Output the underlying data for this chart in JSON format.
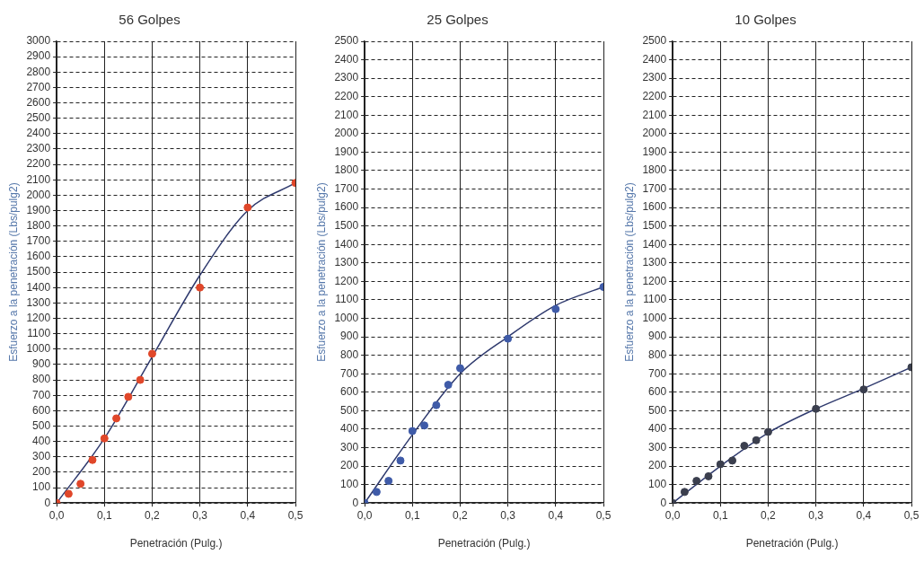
{
  "chart_data": [
    {
      "type": "scatter",
      "title": "56 Golpes",
      "xlabel": "Penetración (Pulg.)",
      "ylabel": "Esfuerzo a la penetración (Lbs/pulg2)",
      "grid": true,
      "legend": false,
      "xlim": [
        0,
        0.5
      ],
      "xticks": [
        {
          "value": 0,
          "label": "0,0"
        },
        {
          "value": 0.1,
          "label": "0,1"
        },
        {
          "value": 0.2,
          "label": "0,2"
        },
        {
          "value": 0.3,
          "label": "0,3"
        },
        {
          "value": 0.4,
          "label": "0,4"
        },
        {
          "value": 0.5,
          "label": "0,5"
        }
      ],
      "ylim": [
        0,
        3000
      ],
      "yticks": [
        0,
        100,
        200,
        300,
        400,
        500,
        600,
        700,
        800,
        900,
        1000,
        1100,
        1200,
        1300,
        1400,
        1500,
        1600,
        1700,
        1800,
        1900,
        2000,
        2100,
        2200,
        2300,
        2400,
        2500,
        2600,
        2700,
        2800,
        2900,
        3000
      ],
      "series": [
        {
          "marker": "circle",
          "color": "#e0472a",
          "x": [
            0,
            0.025,
            0.05,
            0.075,
            0.1,
            0.125,
            0.15,
            0.175,
            0.2,
            0.3,
            0.4,
            0.5
          ],
          "values": [
            0,
            60,
            125,
            280,
            420,
            550,
            690,
            800,
            970,
            1400,
            1920,
            2080
          ]
        },
        {
          "type": "line",
          "marker": "none",
          "color": "#2f3a6e",
          "x": [
            0,
            0.1,
            0.2,
            0.3,
            0.4,
            0.5
          ],
          "values": [
            0,
            420,
            950,
            1480,
            1900,
            2080
          ]
        }
      ]
    },
    {
      "type": "scatter",
      "title": "25 Golpes",
      "xlabel": "Penetración (Pulg.)",
      "ylabel": "Esfuerzo a la penetración (Lbs/pulg2)",
      "grid": true,
      "legend": false,
      "xlim": [
        0,
        0.5
      ],
      "xticks": [
        {
          "value": 0,
          "label": "0,0"
        },
        {
          "value": 0.1,
          "label": "0,1"
        },
        {
          "value": 0.2,
          "label": "0,2"
        },
        {
          "value": 0.3,
          "label": "0,3"
        },
        {
          "value": 0.4,
          "label": "0,4"
        },
        {
          "value": 0.5,
          "label": "0,5"
        }
      ],
      "ylim": [
        0,
        2500
      ],
      "yticks": [
        0,
        100,
        200,
        300,
        400,
        500,
        600,
        700,
        800,
        900,
        1000,
        1100,
        1200,
        1300,
        1400,
        1500,
        1600,
        1700,
        1800,
        1900,
        2000,
        2100,
        2200,
        2300,
        2400,
        2500
      ],
      "series": [
        {
          "marker": "circle",
          "color": "#3f5ba8",
          "x": [
            0,
            0.025,
            0.05,
            0.075,
            0.1,
            0.125,
            0.15,
            0.175,
            0.2,
            0.3,
            0.4,
            0.5
          ],
          "values": [
            0,
            60,
            120,
            230,
            390,
            420,
            530,
            640,
            730,
            890,
            1050,
            1170
          ]
        },
        {
          "type": "line",
          "marker": "none",
          "color": "#2f3a6e",
          "x": [
            0,
            0.1,
            0.2,
            0.3,
            0.4,
            0.5
          ],
          "values": [
            0,
            370,
            700,
            900,
            1070,
            1170
          ]
        }
      ]
    },
    {
      "type": "scatter",
      "title": "10 Golpes",
      "xlabel": "Penetración (Pulg.)",
      "ylabel": "Esfuerzo a la penetración (Lbs/pulg2)",
      "grid": true,
      "legend": false,
      "xlim": [
        0,
        0.5
      ],
      "xticks": [
        {
          "value": 0,
          "label": "0,0"
        },
        {
          "value": 0.1,
          "label": "0,1"
        },
        {
          "value": 0.2,
          "label": "0,2"
        },
        {
          "value": 0.3,
          "label": "0,3"
        },
        {
          "value": 0.4,
          "label": "0,4"
        },
        {
          "value": 0.5,
          "label": "0,5"
        }
      ],
      "ylim": [
        0,
        2500
      ],
      "yticks": [
        0,
        100,
        200,
        300,
        400,
        500,
        600,
        700,
        800,
        900,
        1000,
        1100,
        1200,
        1300,
        1400,
        1500,
        1600,
        1700,
        1800,
        1900,
        2000,
        2100,
        2200,
        2300,
        2400,
        2500
      ],
      "series": [
        {
          "marker": "circle",
          "color": "#3b3f4e",
          "x": [
            0,
            0.025,
            0.05,
            0.075,
            0.1,
            0.125,
            0.15,
            0.175,
            0.2,
            0.3,
            0.4,
            0.5
          ],
          "values": [
            0,
            60,
            120,
            145,
            210,
            230,
            310,
            340,
            385,
            510,
            615,
            735
          ]
        },
        {
          "type": "line",
          "marker": "none",
          "color": "#2f3a6e",
          "x": [
            0,
            0.1,
            0.2,
            0.3,
            0.4,
            0.5
          ],
          "values": [
            0,
            200,
            380,
            510,
            620,
            735
          ]
        }
      ]
    }
  ]
}
